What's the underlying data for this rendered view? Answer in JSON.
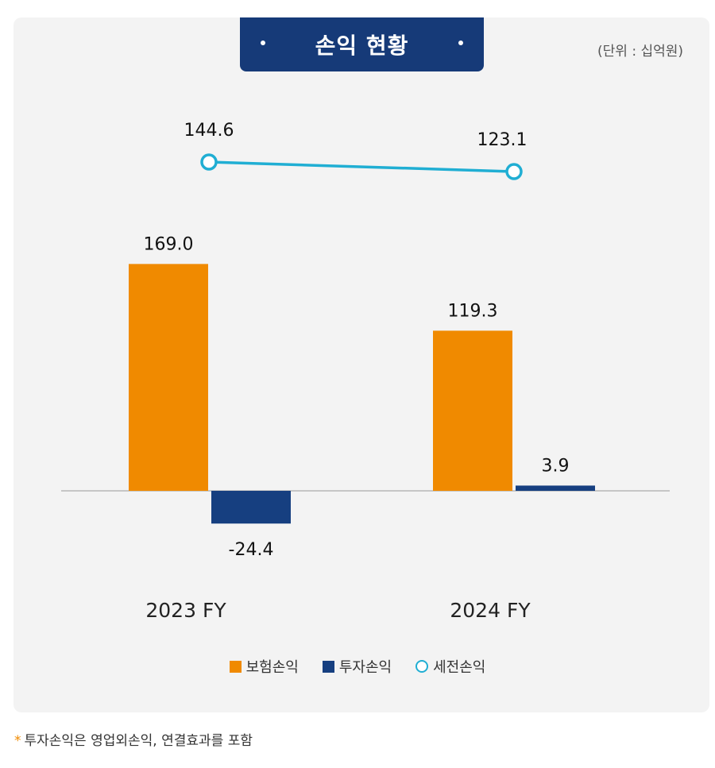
{
  "header": {
    "title": "손익 현황",
    "unit": "(단위 : 십억원)"
  },
  "chart_data": {
    "type": "bar",
    "categories": [
      "2023 FY",
      "2024 FY"
    ],
    "series": [
      {
        "name": "보험손익",
        "kind": "bar",
        "color": "#f08a00",
        "values": [
          169.0,
          119.3
        ]
      },
      {
        "name": "투자손익",
        "kind": "bar",
        "color": "#163f80",
        "values": [
          -24.4,
          3.9
        ]
      },
      {
        "name": "세전손익",
        "kind": "line",
        "color": "#20aed3",
        "values": [
          144.6,
          123.1
        ]
      }
    ],
    "value_labels": {
      "bars": [
        [
          "169.0",
          "-24.4"
        ],
        [
          "119.3",
          "3.9"
        ]
      ],
      "line": [
        "144.6",
        "123.1"
      ]
    },
    "title": "손익 현황",
    "xlabel": "",
    "ylabel": "",
    "legend_position": "bottom",
    "grid": false
  },
  "legend": [
    {
      "label": "보험손익",
      "icon": "square",
      "color": "#f08a00"
    },
    {
      "label": "투자손익",
      "icon": "square",
      "color": "#163f80"
    },
    {
      "label": "세전손익",
      "icon": "circle",
      "color": "#20aed3"
    }
  ],
  "footnote": {
    "marker": "*",
    "text": "투자손익은 영업외손익, 연결효과를 포함"
  }
}
